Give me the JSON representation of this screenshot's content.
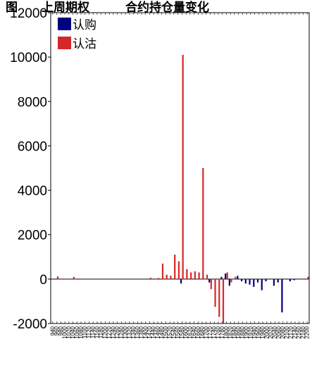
{
  "chart_data": {
    "type": "bar",
    "title": "图　　上周期权　　　合约持仓量变化",
    "xlabel": "",
    "ylabel": "",
    "ylim": [
      -2000,
      12000
    ],
    "yticks": [
      "12000",
      "10000",
      "8000",
      "6000",
      "4000",
      "2000",
      "0",
      "-2000"
    ],
    "grid": false,
    "legend_position": "top-left",
    "categories": [
      "940",
      "960",
      "980",
      "1000",
      "1020",
      "1040",
      "1060",
      "1080",
      "1100",
      "1120",
      "1140",
      "1160",
      "1180",
      "1200",
      "1220",
      "1240",
      "1260",
      "1280",
      "1300",
      "1320",
      "1340",
      "1360",
      "1380",
      "1400",
      "1420",
      "1440",
      "1460",
      "1480",
      "1500",
      "1520",
      "1540",
      "1560",
      "1580",
      "1600",
      "1620",
      "1640",
      "1660",
      "1680",
      "1700",
      "1720",
      "1740",
      "1760",
      "1780",
      "1800",
      "1820",
      "1840",
      "1860",
      "1880",
      "1900",
      "1920",
      "1940",
      "1960",
      "1980",
      "2000",
      "2020",
      "2040",
      "2060",
      "2080",
      "2100",
      "2120",
      "2140",
      "2160",
      "2180",
      "2200"
    ],
    "series": [
      {
        "name": "认购",
        "color": "#00007f",
        "values": [
          0,
          0,
          0,
          0,
          0,
          0,
          0,
          0,
          0,
          0,
          0,
          0,
          0,
          0,
          0,
          0,
          0,
          0,
          0,
          0,
          0,
          0,
          0,
          0,
          0,
          0,
          0,
          0,
          0,
          0,
          0,
          0,
          -200,
          0,
          0,
          0,
          0,
          0,
          0,
          -150,
          0,
          0,
          100,
          250,
          -300,
          0,
          150,
          -100,
          -200,
          -250,
          -350,
          -150,
          -500,
          -100,
          0,
          -300,
          -150,
          -1500,
          0,
          -100,
          -50,
          0,
          0,
          0
        ]
      },
      {
        "name": "认沽",
        "color": "#d62728",
        "values": [
          0,
          120,
          0,
          0,
          0,
          100,
          0,
          0,
          0,
          0,
          0,
          0,
          0,
          0,
          0,
          0,
          0,
          0,
          0,
          0,
          0,
          0,
          0,
          0,
          60,
          0,
          50,
          700,
          200,
          150,
          1100,
          800,
          10100,
          450,
          300,
          350,
          300,
          5000,
          200,
          -450,
          -1250,
          -1700,
          -2000,
          300,
          -150,
          100,
          0,
          0,
          0,
          0,
          0,
          0,
          0,
          0,
          0,
          0,
          0,
          0,
          0,
          0,
          0,
          0,
          0,
          100
        ]
      }
    ]
  }
}
